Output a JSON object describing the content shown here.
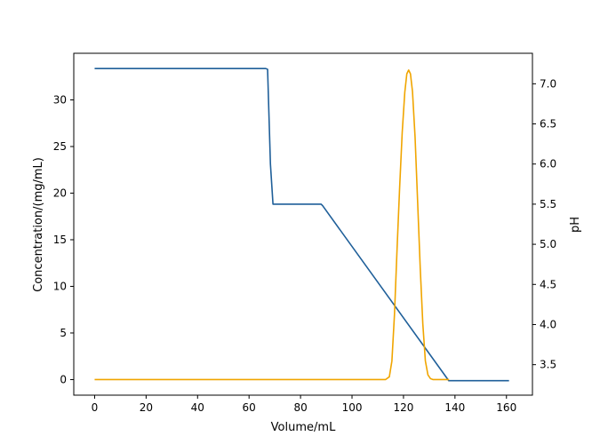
{
  "chart_data": {
    "type": "line",
    "title": "",
    "xlabel": "Volume/mL",
    "ylabel_left": "Concentration/(mg/mL)",
    "ylabel_right": "pH",
    "xlim": [
      -8.1,
      170.1
    ],
    "ylim_left": [
      -1.67,
      35.0
    ],
    "ylim_right": [
      3.12,
      7.38
    ],
    "xticks": [
      0,
      20,
      40,
      60,
      80,
      100,
      120,
      140,
      160
    ],
    "yticks_left": [
      0,
      5,
      10,
      15,
      20,
      25,
      30
    ],
    "yticks_right": [
      3.5,
      4.0,
      4.5,
      5.0,
      5.5,
      6.0,
      6.5,
      7.0
    ],
    "yticks_right_labels": [
      "3.5",
      "4.0",
      "4.5",
      "5.0",
      "5.5",
      "6.0",
      "6.5",
      "7.0"
    ],
    "grid": false,
    "series": [
      {
        "axis": "right",
        "color": "#1f5f99",
        "x": [
          0,
          66.5,
          67.2,
          68.3,
          69.3,
          88.0,
          88.6,
          137.6,
          161.0
        ],
        "values": [
          7.19,
          7.19,
          7.18,
          6.0,
          5.5,
          5.5,
          5.48,
          3.3,
          3.3
        ]
      },
      {
        "axis": "left",
        "color": "#f0a500",
        "x": [
          0,
          113,
          114.5,
          115.5,
          116.5,
          117.5,
          118.5,
          119.5,
          120.5,
          121.3,
          122.0,
          122.7,
          123.5,
          124.5,
          125.5,
          126.5,
          127.5,
          128.5,
          129.5,
          130.5,
          131.5,
          137.7
        ],
        "values": [
          0,
          0,
          0.3,
          2.0,
          7.0,
          14.0,
          20.6,
          26.5,
          30.8,
          32.8,
          33.2,
          32.8,
          30.9,
          26.0,
          19.0,
          12.0,
          6.0,
          2.0,
          0.5,
          0.1,
          0,
          0
        ]
      }
    ]
  }
}
